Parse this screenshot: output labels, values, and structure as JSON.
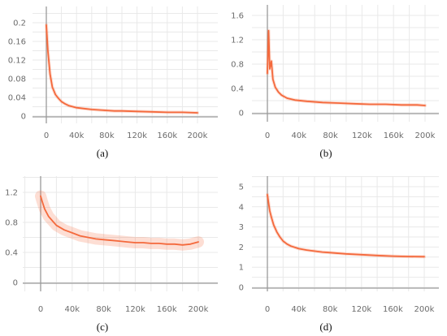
{
  "chart_data": [
    {
      "type": "line",
      "caption": "(a)",
      "xlim": [
        0,
        200000
      ],
      "ylim": [
        0,
        0.2
      ],
      "xticks": [
        "0",
        "40k",
        "80k",
        "120k",
        "160k",
        "200k"
      ],
      "yticks": [
        "0",
        "0.04",
        "0.08",
        "0.12",
        "0.16",
        "0.2"
      ],
      "xtick_values": [
        0,
        40000,
        80000,
        120000,
        160000,
        200000
      ],
      "ytick_values": [
        0,
        0.04,
        0.08,
        0.12,
        0.16,
        0.2
      ],
      "grid": true,
      "series": [
        {
          "color": "#f4693c",
          "x": [
            0,
            2000,
            5000,
            8000,
            12000,
            16000,
            20000,
            25000,
            30000,
            40000,
            50000,
            60000,
            70000,
            80000,
            90000,
            100000,
            120000,
            140000,
            160000,
            180000,
            200000
          ],
          "y": [
            0.195,
            0.14,
            0.09,
            0.062,
            0.046,
            0.038,
            0.031,
            0.026,
            0.022,
            0.018,
            0.016,
            0.014,
            0.013,
            0.012,
            0.011,
            0.011,
            0.01,
            0.009,
            0.008,
            0.008,
            0.007
          ]
        }
      ]
    },
    {
      "type": "line",
      "caption": "(b)",
      "xlim": [
        0,
        200000
      ],
      "ylim": [
        0,
        1.6
      ],
      "xticks": [
        "0",
        "40k",
        "80k",
        "120k",
        "160k",
        "200k"
      ],
      "yticks": [
        "0",
        "0.4",
        "0.8",
        "1.2",
        "1.6"
      ],
      "xtick_values": [
        0,
        40000,
        80000,
        120000,
        160000,
        200000
      ],
      "ytick_values": [
        0,
        0.4,
        0.8,
        1.2,
        1.6
      ],
      "grid": true,
      "series": [
        {
          "color": "#f4693c",
          "x": [
            0,
            1500,
            3000,
            5000,
            7000,
            10000,
            14000,
            18000,
            25000,
            35000,
            50000,
            70000,
            90000,
            110000,
            130000,
            150000,
            170000,
            190000,
            200000
          ],
          "y": [
            0.65,
            1.35,
            0.72,
            0.85,
            0.55,
            0.42,
            0.34,
            0.29,
            0.24,
            0.21,
            0.19,
            0.17,
            0.16,
            0.15,
            0.14,
            0.14,
            0.13,
            0.13,
            0.12
          ]
        }
      ]
    },
    {
      "type": "line",
      "caption": "(c)",
      "xlim": [
        0,
        200000
      ],
      "ylim": [
        0,
        1.4
      ],
      "xticks": [
        "0",
        "40k",
        "80k",
        "120k",
        "160k",
        "200k"
      ],
      "yticks": [
        "0",
        "0.4",
        "0.8",
        "1.2"
      ],
      "xtick_values": [
        0,
        40000,
        80000,
        120000,
        160000,
        200000
      ],
      "ytick_values": [
        0,
        0.4,
        0.8,
        1.2
      ],
      "grid": true,
      "series": [
        {
          "color": "#f4693c",
          "x": [
            0,
            2000,
            5000,
            10000,
            15000,
            20000,
            30000,
            40000,
            50000,
            60000,
            70000,
            80000,
            90000,
            100000,
            110000,
            120000,
            130000,
            140000,
            150000,
            160000,
            170000,
            180000,
            190000,
            200000
          ],
          "y": [
            1.15,
            1.08,
            0.98,
            0.88,
            0.82,
            0.76,
            0.7,
            0.66,
            0.62,
            0.6,
            0.58,
            0.57,
            0.56,
            0.55,
            0.54,
            0.53,
            0.53,
            0.52,
            0.52,
            0.51,
            0.51,
            0.5,
            0.51,
            0.54
          ]
        }
      ]
    },
    {
      "type": "line",
      "caption": "(d)",
      "xlim": [
        0,
        200000
      ],
      "ylim": [
        0,
        5
      ],
      "xticks": [
        "0",
        "40k",
        "80k",
        "120k",
        "160k",
        "200k"
      ],
      "yticks": [
        "0",
        "1",
        "2",
        "3",
        "4",
        "5"
      ],
      "xtick_values": [
        0,
        40000,
        80000,
        120000,
        160000,
        200000
      ],
      "ytick_values": [
        0,
        1,
        2,
        3,
        4,
        5
      ],
      "grid": true,
      "series": [
        {
          "color": "#f4693c",
          "x": [
            0,
            1500,
            3000,
            5000,
            8000,
            12000,
            16000,
            20000,
            25000,
            30000,
            40000,
            50000,
            60000,
            70000,
            80000,
            100000,
            120000,
            140000,
            160000,
            180000,
            200000
          ],
          "y": [
            4.6,
            4.2,
            3.8,
            3.5,
            3.1,
            2.75,
            2.5,
            2.3,
            2.15,
            2.05,
            1.92,
            1.85,
            1.8,
            1.75,
            1.72,
            1.66,
            1.62,
            1.58,
            1.55,
            1.53,
            1.52
          ]
        }
      ]
    }
  ]
}
